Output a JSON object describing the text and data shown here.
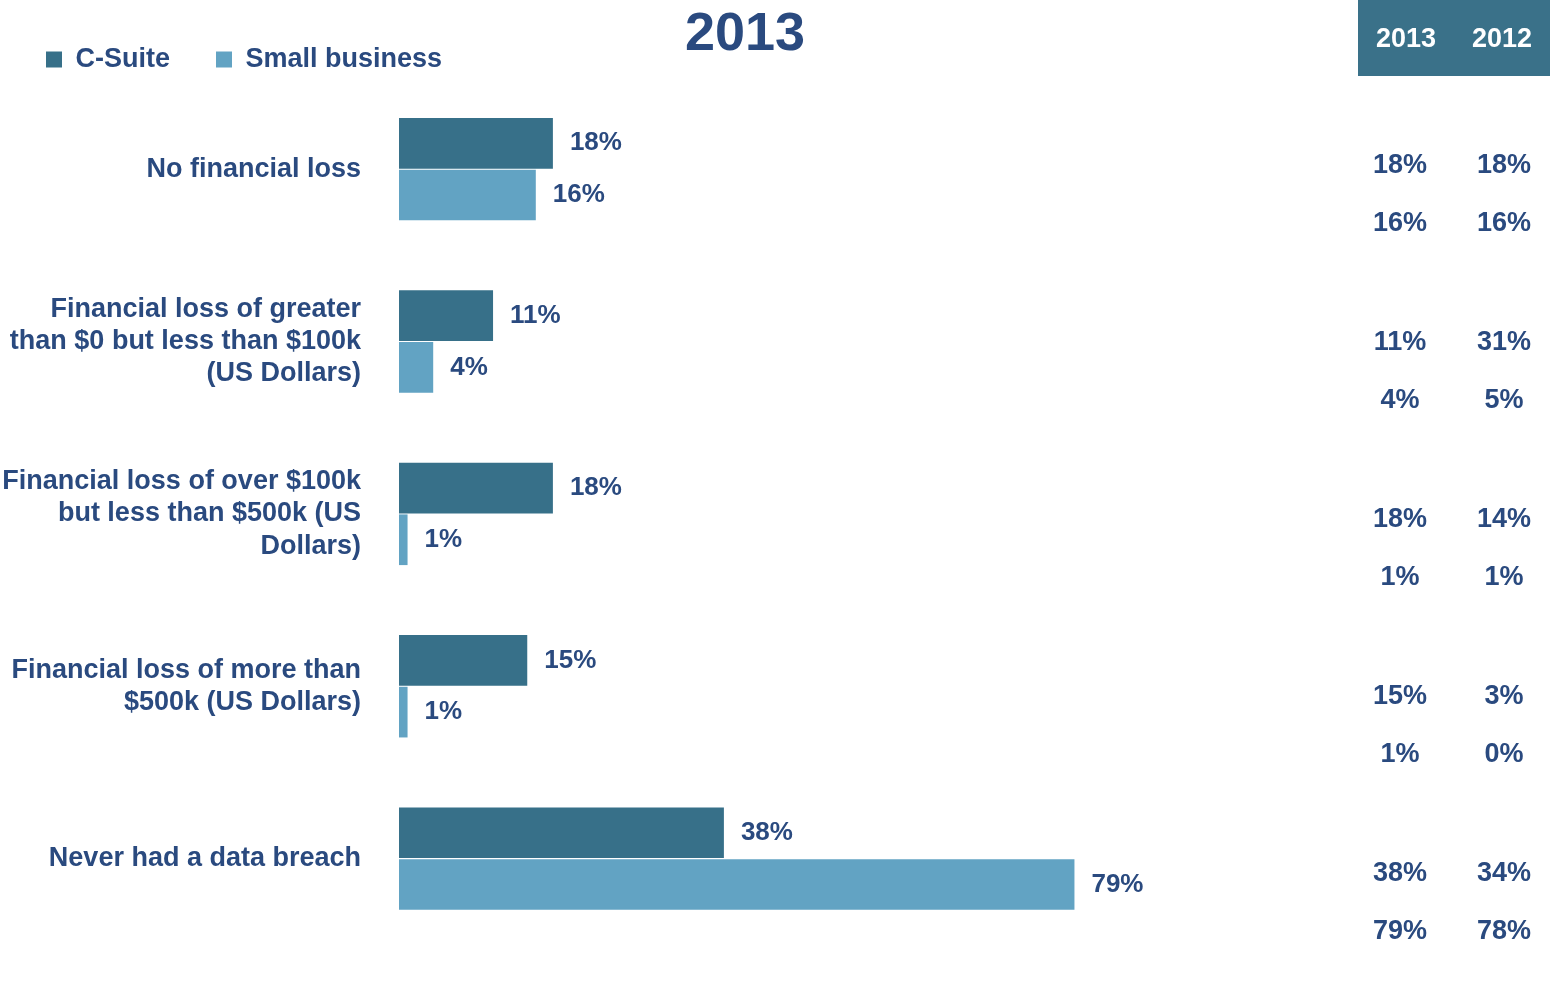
{
  "chart_data": [
    {
      "type": "bar",
      "orientation": "horizontal",
      "title": "2013",
      "categories": [
        "No financial loss",
        "Financial loss of greater than $0 but less than $100k (US Dollars)",
        "Financial loss of over $100k but less than $500k (US Dollars)",
        "Financial loss of more than $500k (US Dollars)",
        "Never had a data breach"
      ],
      "series": [
        {
          "name": "C-Suite",
          "color": "#377089",
          "values": [
            18,
            11,
            18,
            15,
            38
          ],
          "value_labels": [
            "18%",
            "11%",
            "18%",
            "15%",
            "38%"
          ]
        },
        {
          "name": "Small business",
          "color": "#62a3c3",
          "values": [
            16,
            4,
            1,
            1,
            79
          ],
          "value_labels": [
            "16%",
            "4%",
            "1%",
            "1%",
            "79%"
          ]
        }
      ],
      "tick_labels": "y",
      "legend": "top left"
    },
    {
      "type": "other",
      "categories": [
        "2013",
        "2012"
      ],
      "annotations": [
        "18%",
        "18%",
        "16%",
        "16%",
        "11%",
        "31%",
        "4%",
        "5%",
        "18%",
        "14%",
        "1%",
        "1%",
        "15%",
        "3%",
        "1%",
        "0%",
        "38%",
        "34%",
        "79%",
        "78%"
      ]
    }
  ]
}
